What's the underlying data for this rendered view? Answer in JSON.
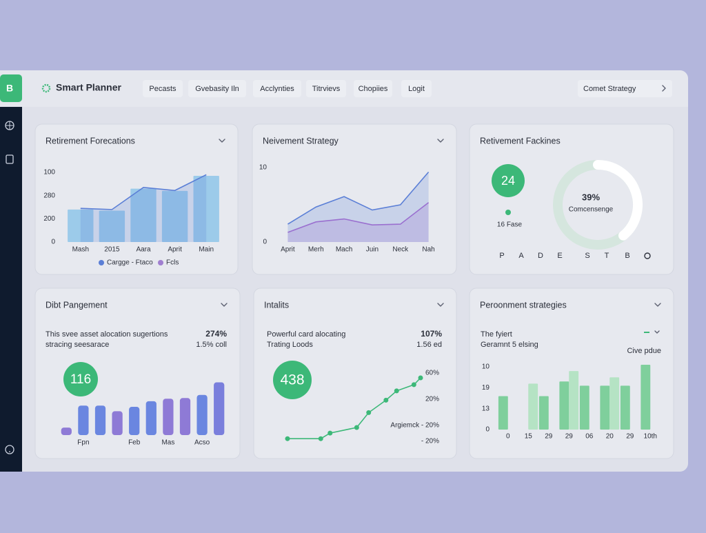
{
  "header": {
    "logo": "B",
    "title": "Smart Planner",
    "tabs": [
      "Pecasts",
      "Gvebasity Iln",
      "Acclynties",
      "Titrvievs",
      "Chopiies",
      "Logit"
    ],
    "button": "Comet Strategy"
  },
  "cards": [
    {
      "title": "Retirement Forecations"
    },
    {
      "title": "Neivement Strategy"
    },
    {
      "title": "Retivement Fackines",
      "badge": "24",
      "note": "16 Fase",
      "letters": [
        "P",
        "A",
        "D",
        "E",
        "S",
        "T",
        "B"
      ]
    },
    {
      "title": "Dibt Pangement",
      "lines": [
        "This svee asset alocation sugertions",
        "stracing seesarace"
      ],
      "stat": "274%",
      "sub": "1.5% coll",
      "badge": "116"
    },
    {
      "title": "Intalits",
      "lines": [
        "Powerful card alocating",
        "Trating Loods"
      ],
      "stat": "107%",
      "sub": "1.56 ed",
      "badge": "438",
      "labels": [
        "60%",
        "20%",
        "Argiemck - 20%",
        "- 20%"
      ]
    },
    {
      "title": "Peroonment strategies",
      "lines": [
        "The fyiert",
        "Geramnt 5 elsing"
      ],
      "note": "Cive pdue"
    }
  ],
  "chart_data": [
    {
      "type": "combo",
      "categories": [
        "Mash",
        "2015",
        "Aara",
        "Aprit",
        "Main"
      ],
      "ylim": [
        0,
        300
      ],
      "yticks": [
        0,
        {
          "value": 100,
          "label": "200"
        },
        {
          "value": 200,
          "label": "280"
        },
        {
          "value": 300,
          "label": "100"
        }
      ],
      "series": [
        {
          "name": "Cargge - Ftaco",
          "type": "bar",
          "color": "#9ccbea",
          "values": [
            140,
            135,
            230,
            220,
            285
          ]
        },
        {
          "name": "Fcls",
          "type": "area",
          "color": "#5b7fd6",
          "values": [
            145,
            140,
            235,
            222,
            290
          ]
        }
      ]
    },
    {
      "type": "area",
      "categories": [
        "Aprit",
        "Merh",
        "Mach",
        "Juin",
        "Neck",
        "Nah"
      ],
      "ylim": [
        0,
        10
      ],
      "yticks": [
        0,
        10
      ],
      "series": [
        {
          "color": "#5b7fd6",
          "values": [
            2.4,
            4.7,
            6.1,
            4.3,
            5,
            9.4
          ]
        },
        {
          "color": "#9a6fcf",
          "values": [
            1.3,
            2.7,
            3.1,
            2.3,
            2.4,
            5.3
          ]
        }
      ]
    },
    {
      "type": "gauge",
      "values": [
        39
      ],
      "value_labels": [
        "39%"
      ],
      "label": "Comcensenge",
      "color": "#ffffff"
    },
    {
      "type": "bar",
      "categories": [
        null,
        "Fpn",
        null,
        null,
        "Feb",
        null,
        "Mas",
        null,
        "Acso",
        null
      ],
      "ylim": [
        0,
        100
      ],
      "series": [
        {
          "colors": [
            "#8e7ad6",
            "#6a86e0",
            "#6a86e0",
            "#8e7ad6",
            "#6a86e0",
            "#6a86e0",
            "#8e7ad6",
            "#8e7ad6",
            "#6a86e0",
            "#7a7fdc"
          ],
          "values": [
            12,
            47,
            47,
            38,
            45,
            54,
            58,
            59,
            64,
            84
          ]
        }
      ]
    },
    {
      "type": "line",
      "x": [
        0,
        25,
        32,
        52,
        61,
        74,
        82,
        95,
        100
      ],
      "xlim": [
        0,
        100
      ],
      "ylim": [
        0,
        100
      ],
      "series": [
        {
          "color": "#3cb878",
          "values": [
            2,
            2,
            11,
            20,
            44,
            64,
            79,
            89,
            100
          ]
        }
      ]
    },
    {
      "type": "bar",
      "categories": [
        "0",
        "15",
        "29",
        "29",
        "06",
        "20",
        "29",
        "10th"
      ],
      "ylim": [
        0,
        32
      ],
      "yticks": [
        0,
        {
          "value": 10,
          "label": "13"
        },
        {
          "value": 20,
          "label": "19"
        },
        {
          "value": 30,
          "label": "10"
        }
      ],
      "series": [
        {
          "color": "#7fcf9c",
          "values": [
            16,
            null,
            16,
            23,
            21,
            21,
            21,
            31
          ]
        },
        {
          "color": "#b5e3c4",
          "values": [
            null,
            22,
            null,
            28,
            null,
            25,
            null,
            null
          ]
        }
      ]
    }
  ]
}
